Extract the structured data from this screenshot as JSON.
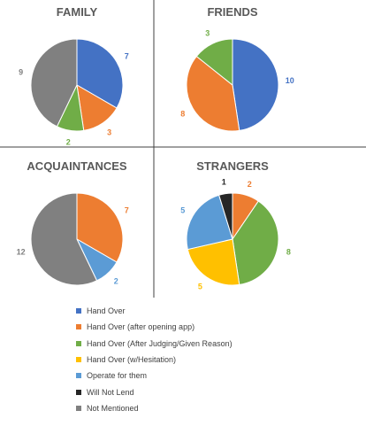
{
  "chart_data": {
    "type": "pie",
    "legend": {
      "position": "bottom",
      "entries": [
        {
          "name": "Hand Over",
          "color": "#4472C4"
        },
        {
          "name": "Hand Over (after opening app)",
          "color": "#ED7D31"
        },
        {
          "name": "Hand Over (After Judging/Given Reason)",
          "color": "#70AD47"
        },
        {
          "name": "Hand Over (w/Hesitation)",
          "color": "#FFC000"
        },
        {
          "name": "Operate for them",
          "color": "#5B9BD5"
        },
        {
          "name": "Will Not Lend",
          "color": "#262626"
        },
        {
          "name": "Not Mentioned",
          "color": "#808080"
        }
      ]
    },
    "charts": [
      {
        "title": "FAMILY",
        "slices": [
          {
            "name": "Hand Over",
            "value": 7,
            "label": "7",
            "color": "#4472C4"
          },
          {
            "name": "Hand Over (after opening app)",
            "value": 3,
            "label": "3",
            "color": "#ED7D31"
          },
          {
            "name": "Hand Over (After Judging/Given Reason)",
            "value": 2,
            "label": "2",
            "color": "#70AD47"
          },
          {
            "name": "Not Mentioned",
            "value": 9,
            "label": "9",
            "color": "#808080"
          }
        ]
      },
      {
        "title": "FRIENDS",
        "slices": [
          {
            "name": "Hand Over",
            "value": 10,
            "label": "10",
            "color": "#4472C4"
          },
          {
            "name": "Hand Over (after opening app)",
            "value": 8,
            "label": "8",
            "color": "#ED7D31"
          },
          {
            "name": "Hand Over (After Judging/Given Reason)",
            "value": 3,
            "label": "3",
            "color": "#70AD47"
          }
        ]
      },
      {
        "title": "ACQUAINTANCES",
        "slices": [
          {
            "name": "Hand Over (after opening app)",
            "value": 7,
            "label": "7",
            "color": "#ED7D31"
          },
          {
            "name": "Operate for them",
            "value": 2,
            "label": "2",
            "color": "#5B9BD5"
          },
          {
            "name": "Not Mentioned",
            "value": 12,
            "label": "12",
            "color": "#808080"
          }
        ]
      },
      {
        "title": "STRANGERS",
        "slices": [
          {
            "name": "Hand Over (after opening app)",
            "value": 2,
            "label": "2",
            "color": "#ED7D31"
          },
          {
            "name": "Hand Over (After Judging/Given Reason)",
            "value": 8,
            "label": "8",
            "color": "#70AD47"
          },
          {
            "name": "Hand Over (w/Hesitation)",
            "value": 5,
            "label": "5",
            "color": "#FFC000"
          },
          {
            "name": "Operate for them",
            "value": 5,
            "label": "5",
            "color": "#5B9BD5"
          },
          {
            "name": "Will Not Lend",
            "value": 1,
            "label": "1",
            "color": "#262626"
          }
        ]
      }
    ]
  }
}
